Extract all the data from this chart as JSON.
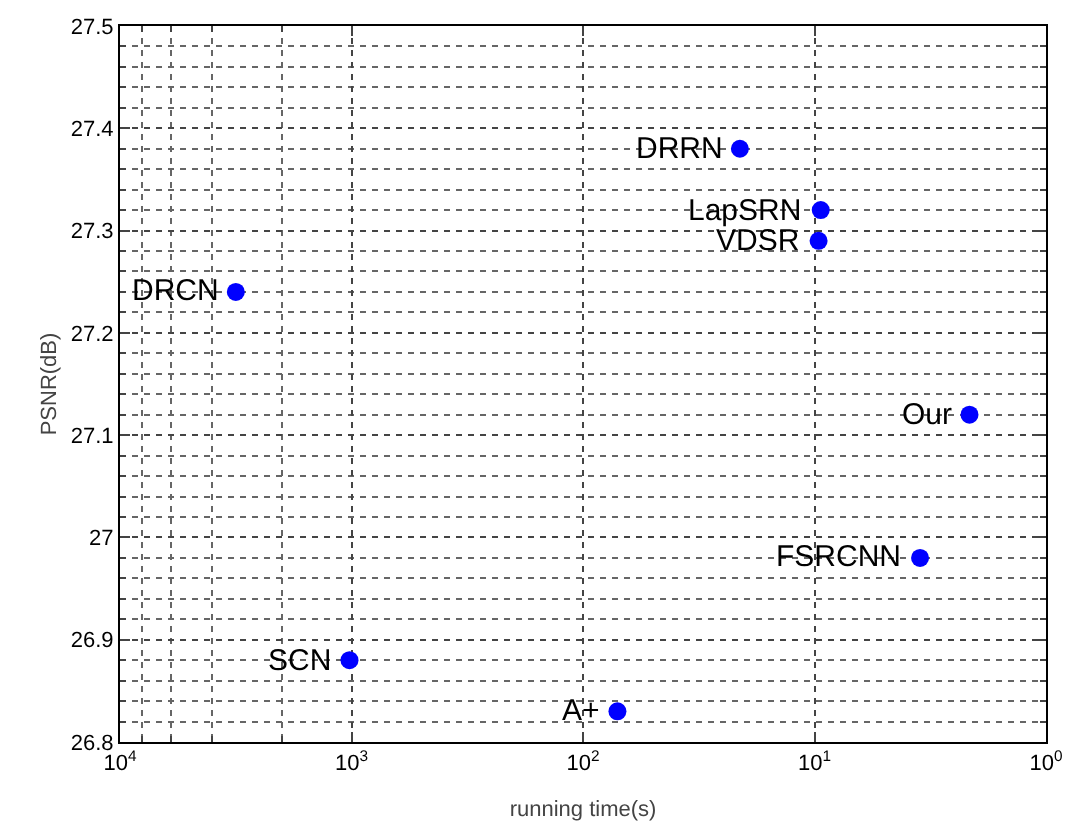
{
  "chart_data": {
    "type": "scatter",
    "xlabel": "running time(s)",
    "ylabel": "PSNR(dB)",
    "log": "x",
    "x": [
      21,
      9.4,
      9.6,
      3160,
      2.14,
      3.5,
      1020,
      71
    ],
    "series": [
      {
        "color": "#0000ff",
        "values": [
          27.38,
          27.32,
          27.29,
          27.24,
          27.12,
          26.98,
          26.88,
          26.83
        ]
      }
    ],
    "xlim": [
      10000,
      1
    ],
    "xticks": [
      {
        "value": 10000,
        "label": "10$^{4}$"
      },
      {
        "value": 1000,
        "label": "10$^{3}$"
      },
      {
        "value": 100,
        "label": "10$^{2}$"
      },
      {
        "value": 10,
        "label": "10$^{1}$"
      },
      {
        "value": 1,
        "label": "10$^{0}$"
      }
    ],
    "ylim": [
      26.8,
      27.5
    ],
    "yticks": [
      26.8,
      26.9,
      27,
      27.1,
      27.2,
      27.3,
      27.4,
      27.5
    ],
    "grid": true,
    "marker": "circle",
    "annotations": [
      {
        "text": "DRRN",
        "x": 21,
        "y": 27.38
      },
      {
        "text": "LapSRN",
        "x": 9.4,
        "y": 27.32
      },
      {
        "text": "VDSR",
        "x": 9.6,
        "y": 27.29
      },
      {
        "text": "DRCN",
        "x": 3160,
        "y": 27.24
      },
      {
        "text": "Our",
        "x": 2.14,
        "y": 27.12
      },
      {
        "text": "FSRCNN",
        "x": 3.5,
        "y": 26.98
      },
      {
        "text": "SCN",
        "x": 1020,
        "y": 26.88
      },
      {
        "text": "A+",
        "x": 71,
        "y": 26.83
      }
    ]
  }
}
